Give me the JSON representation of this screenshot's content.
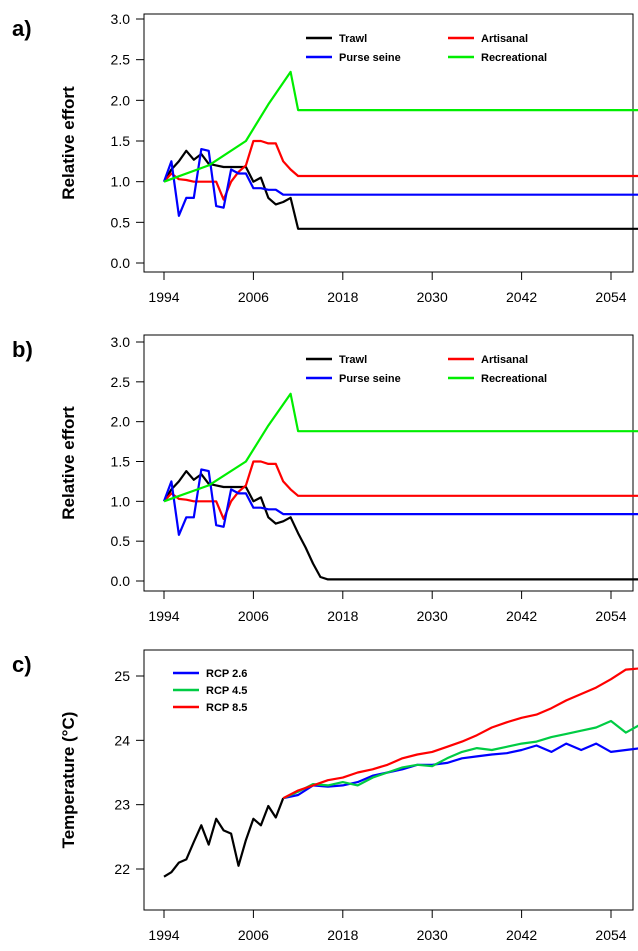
{
  "chart_data": [
    {
      "type": "line",
      "panel_label": "a)",
      "title": "",
      "xlabel": "",
      "ylabel": "Relative effort",
      "xlim": [
        1994,
        2063
      ],
      "ylim": [
        0,
        3
      ],
      "x_ticks": [
        "1994",
        "2006",
        "2018",
        "2030",
        "2042",
        "2054"
      ],
      "y_ticks": [
        "0.0",
        "0.5",
        "1.0",
        "1.5",
        "2.0",
        "2.5",
        "3.0"
      ],
      "legend_position": "top-right",
      "legend_columns": 2,
      "series": [
        {
          "name": "Trawl",
          "color": "#000000",
          "x": [
            1994,
            1995,
            1996,
            1997,
            1998,
            1999,
            2000,
            2001,
            2002,
            2003,
            2004,
            2005,
            2006,
            2007,
            2008,
            2009,
            2010,
            2011,
            2012,
            2063
          ],
          "y": [
            1.0,
            1.15,
            1.25,
            1.38,
            1.27,
            1.34,
            1.22,
            1.2,
            1.18,
            1.18,
            1.18,
            1.18,
            1.0,
            1.05,
            0.8,
            0.72,
            0.75,
            0.8,
            0.42,
            0.42
          ]
        },
        {
          "name": "Artisanal",
          "color": "#ff0000",
          "x": [
            1994,
            1995,
            1996,
            1997,
            1998,
            1999,
            2000,
            2001,
            2002,
            2003,
            2004,
            2005,
            2006,
            2007,
            2008,
            2009,
            2010,
            2011,
            2012,
            2063
          ],
          "y": [
            1.0,
            1.1,
            1.03,
            1.02,
            1.0,
            1.0,
            1.0,
            1.0,
            0.78,
            1.0,
            1.12,
            1.2,
            1.5,
            1.5,
            1.47,
            1.47,
            1.25,
            1.15,
            1.07,
            1.07
          ]
        },
        {
          "name": "Purse seine",
          "color": "#0000ff",
          "x": [
            1994,
            1995,
            1996,
            1997,
            1998,
            1999,
            2000,
            2001,
            2002,
            2003,
            2004,
            2005,
            2006,
            2007,
            2008,
            2009,
            2010,
            2011,
            2012,
            2063
          ],
          "y": [
            1.0,
            1.25,
            0.58,
            0.8,
            0.8,
            1.4,
            1.38,
            0.7,
            0.68,
            1.15,
            1.1,
            1.1,
            0.92,
            0.92,
            0.9,
            0.9,
            0.84,
            0.84,
            0.84,
            0.84
          ]
        },
        {
          "name": "Recreational",
          "color": "#00ee00",
          "x": [
            1994,
            2000,
            2005,
            2008,
            2011,
            2012,
            2063
          ],
          "y": [
            1.0,
            1.2,
            1.5,
            1.95,
            2.35,
            1.88,
            1.88
          ]
        }
      ]
    },
    {
      "type": "line",
      "panel_label": "b)",
      "title": "",
      "xlabel": "",
      "ylabel": "Relative effort",
      "xlim": [
        1994,
        2063
      ],
      "ylim": [
        0,
        3
      ],
      "x_ticks": [
        "1994",
        "2006",
        "2018",
        "2030",
        "2042",
        "2054"
      ],
      "y_ticks": [
        "0.0",
        "0.5",
        "1.0",
        "1.5",
        "2.0",
        "2.5",
        "3.0"
      ],
      "legend_position": "top-right",
      "legend_columns": 2,
      "series": [
        {
          "name": "Trawl",
          "color": "#000000",
          "x": [
            1994,
            1995,
            1996,
            1997,
            1998,
            1999,
            2000,
            2001,
            2002,
            2003,
            2004,
            2005,
            2006,
            2007,
            2008,
            2009,
            2010,
            2011,
            2012,
            2013,
            2014,
            2015,
            2016,
            2063
          ],
          "y": [
            1.0,
            1.15,
            1.25,
            1.38,
            1.27,
            1.34,
            1.22,
            1.2,
            1.18,
            1.18,
            1.18,
            1.18,
            1.0,
            1.05,
            0.8,
            0.72,
            0.75,
            0.8,
            0.6,
            0.42,
            0.22,
            0.05,
            0.02,
            0.02
          ]
        },
        {
          "name": "Artisanal",
          "color": "#ff0000",
          "x": [
            1994,
            1995,
            1996,
            1997,
            1998,
            1999,
            2000,
            2001,
            2002,
            2003,
            2004,
            2005,
            2006,
            2007,
            2008,
            2009,
            2010,
            2011,
            2012,
            2063
          ],
          "y": [
            1.0,
            1.1,
            1.03,
            1.02,
            1.0,
            1.0,
            1.0,
            1.0,
            0.78,
            1.0,
            1.12,
            1.2,
            1.5,
            1.5,
            1.47,
            1.47,
            1.25,
            1.15,
            1.07,
            1.07
          ]
        },
        {
          "name": "Purse seine",
          "color": "#0000ff",
          "x": [
            1994,
            1995,
            1996,
            1997,
            1998,
            1999,
            2000,
            2001,
            2002,
            2003,
            2004,
            2005,
            2006,
            2007,
            2008,
            2009,
            2010,
            2011,
            2012,
            2063
          ],
          "y": [
            1.0,
            1.25,
            0.58,
            0.8,
            0.8,
            1.4,
            1.38,
            0.7,
            0.68,
            1.15,
            1.1,
            1.1,
            0.92,
            0.92,
            0.9,
            0.9,
            0.84,
            0.84,
            0.84,
            0.84
          ]
        },
        {
          "name": "Recreational",
          "color": "#00ee00",
          "x": [
            1994,
            2000,
            2005,
            2008,
            2011,
            2012,
            2063
          ],
          "y": [
            1.0,
            1.2,
            1.5,
            1.95,
            2.35,
            1.88,
            1.88
          ]
        }
      ]
    },
    {
      "type": "line",
      "panel_label": "c)",
      "title": "",
      "xlabel": "",
      "ylabel": "Temperature (°C)",
      "xlim": [
        1994,
        2063
      ],
      "ylim": [
        21.5,
        25.5
      ],
      "x_ticks": [
        "1994",
        "2006",
        "2018",
        "2030",
        "2042",
        "2054"
      ],
      "y_ticks": [
        "22",
        "23",
        "24",
        "25"
      ],
      "legend_position": "top-left",
      "legend_columns": 1,
      "series": [
        {
          "name": "",
          "color": "#000000",
          "x": [
            1994,
            1995,
            1996,
            1997,
            1998,
            1999,
            2000,
            2001,
            2002,
            2003,
            2004,
            2005,
            2006,
            2007,
            2008,
            2009,
            2010
          ],
          "y": [
            21.88,
            21.95,
            22.1,
            22.15,
            22.42,
            22.68,
            22.38,
            22.78,
            22.6,
            22.55,
            22.05,
            22.45,
            22.78,
            22.68,
            22.98,
            22.8,
            23.1
          ]
        },
        {
          "name": "RCP 2.6",
          "color": "#0000ff",
          "x": [
            2010,
            2012,
            2014,
            2016,
            2018,
            2020,
            2022,
            2024,
            2026,
            2028,
            2030,
            2032,
            2034,
            2036,
            2038,
            2040,
            2042,
            2044,
            2046,
            2048,
            2050,
            2052,
            2054,
            2056,
            2058,
            2060,
            2062
          ],
          "y": [
            23.1,
            23.15,
            23.3,
            23.28,
            23.3,
            23.35,
            23.45,
            23.5,
            23.55,
            23.62,
            23.62,
            23.65,
            23.72,
            23.75,
            23.78,
            23.8,
            23.85,
            23.92,
            23.82,
            23.95,
            23.85,
            23.95,
            23.82,
            23.85,
            23.88,
            23.82,
            23.85
          ]
        },
        {
          "name": "RCP 4.5",
          "color": "#00cc44",
          "x": [
            2010,
            2012,
            2014,
            2016,
            2018,
            2020,
            2022,
            2024,
            2026,
            2028,
            2030,
            2032,
            2034,
            2036,
            2038,
            2040,
            2042,
            2044,
            2046,
            2048,
            2050,
            2052,
            2054,
            2056,
            2058,
            2060,
            2062
          ],
          "y": [
            23.1,
            23.2,
            23.32,
            23.3,
            23.35,
            23.3,
            23.42,
            23.5,
            23.58,
            23.62,
            23.6,
            23.72,
            23.82,
            23.88,
            23.85,
            23.9,
            23.95,
            23.98,
            24.05,
            24.1,
            24.15,
            24.2,
            24.3,
            24.12,
            24.25,
            24.3,
            24.42
          ]
        },
        {
          "name": "RCP 8.5",
          "color": "#ff0000",
          "x": [
            2010,
            2012,
            2014,
            2016,
            2018,
            2020,
            2022,
            2024,
            2026,
            2028,
            2030,
            2032,
            2034,
            2036,
            2038,
            2040,
            2042,
            2044,
            2046,
            2048,
            2050,
            2052,
            2054,
            2056,
            2058,
            2060,
            2062
          ],
          "y": [
            23.1,
            23.22,
            23.3,
            23.38,
            23.42,
            23.5,
            23.55,
            23.62,
            23.72,
            23.78,
            23.82,
            23.9,
            23.98,
            24.08,
            24.2,
            24.28,
            24.35,
            24.4,
            24.5,
            24.62,
            24.72,
            24.82,
            24.95,
            25.1,
            25.12,
            25.2,
            25.28
          ]
        }
      ]
    }
  ]
}
